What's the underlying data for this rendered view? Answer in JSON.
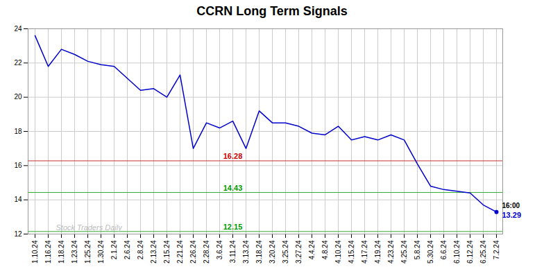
{
  "chart_data": {
    "type": "line",
    "title": "CCRN Long Term Signals",
    "categories": [
      "1.10.24",
      "1.16.24",
      "1.18.24",
      "1.23.24",
      "1.25.24",
      "1.30.24",
      "2.1.24",
      "2.6.24",
      "2.8.24",
      "2.13.24",
      "2.15.24",
      "2.21.24",
      "2.26.24",
      "2.28.24",
      "3.6.24",
      "3.11.24",
      "3.13.24",
      "3.18.24",
      "3.20.24",
      "3.25.24",
      "3.27.24",
      "4.4.24",
      "4.8.24",
      "4.10.24",
      "4.15.24",
      "4.17.24",
      "4.19.24",
      "4.23.24",
      "4.25.24",
      "5.8.24",
      "5.30.24",
      "6.6.24",
      "6.10.24",
      "6.12.24",
      "6.25.24",
      "7.2.24"
    ],
    "values": [
      23.6,
      21.8,
      22.8,
      22.5,
      22.1,
      21.9,
      21.8,
      21.1,
      20.4,
      20.5,
      20.0,
      21.3,
      17.0,
      18.5,
      18.2,
      18.6,
      17.0,
      19.2,
      18.5,
      18.5,
      18.3,
      17.9,
      17.8,
      18.3,
      17.5,
      17.7,
      17.5,
      17.8,
      17.5,
      16.1,
      14.8,
      14.6,
      14.5,
      14.4,
      13.7,
      13.29
    ],
    "color": "#0000cc",
    "ylim": [
      12,
      24
    ],
    "yticks": [
      12,
      14,
      16,
      18,
      20,
      22,
      24
    ],
    "grid": true,
    "hlines": [
      {
        "y": 16.28,
        "label": "16.28",
        "color": "#cc3333",
        "label_color": "#cc0000"
      },
      {
        "y": 14.43,
        "label": "14.43",
        "color": "#33aa33",
        "label_color": "#009900"
      },
      {
        "y": 12.15,
        "label": "12.15",
        "color": "#33aa33",
        "label_color": "#009900"
      }
    ],
    "annotations": [
      {
        "text": "16:00",
        "x": "7.2.24",
        "y": 13.29,
        "color": "#000000"
      },
      {
        "text": "13.29",
        "x": "7.2.24",
        "y": 13.29,
        "color": "#0000cc"
      },
      {
        "text": "Stock Traders Daily",
        "color": "#bbbbbb"
      }
    ]
  }
}
